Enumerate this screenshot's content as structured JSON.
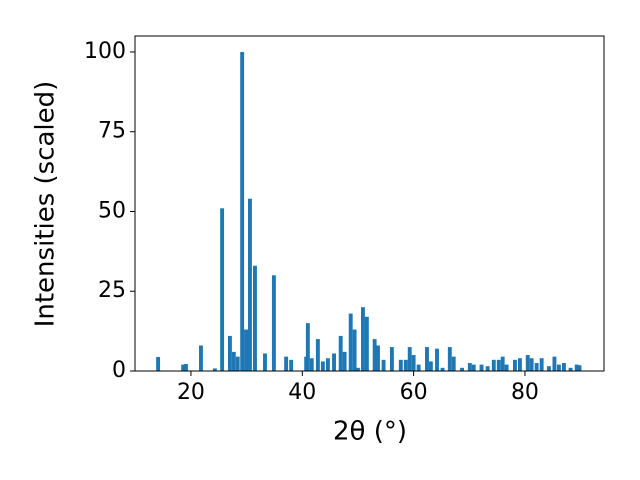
{
  "chart_data": {
    "type": "bar",
    "xlabel": "2θ (°)",
    "ylabel": "Intensities (scaled)",
    "color": "#1f77b4",
    "bar_width": 0.7,
    "xlim": [
      9.95,
      94.2
    ],
    "ylim": [
      0,
      105
    ],
    "xticks": [
      20,
      40,
      60,
      80
    ],
    "yticks": [
      0,
      25,
      50,
      75,
      100
    ],
    "grid": false,
    "x": [
      14.1,
      18.6,
      19.1,
      21.8,
      24.3,
      25.6,
      27.0,
      27.7,
      28.4,
      29.2,
      29.9,
      30.6,
      31.5,
      33.3,
      34.9,
      37.1,
      38.0,
      40.7,
      41.0,
      41.7,
      42.8,
      43.7,
      44.6,
      45.7,
      46.9,
      47.6,
      48.7,
      49.4,
      50.0,
      50.9,
      51.6,
      53.0,
      53.6,
      54.6,
      56.1,
      57.7,
      58.6,
      59.3,
      60.0,
      60.9,
      62.4,
      63.1,
      64.2,
      65.2,
      66.5,
      67.2,
      68.7,
      70.1,
      70.8,
      72.2,
      73.3,
      74.4,
      75.3,
      76.0,
      76.7,
      78.2,
      79.1,
      80.5,
      81.2,
      82.1,
      83.0,
      84.3,
      85.3,
      86.1,
      87.0,
      88.2,
      89.3,
      89.8
    ],
    "values": [
      4.4,
      2,
      2.2,
      8,
      0.8,
      51,
      11,
      6,
      4.5,
      100,
      13,
      54,
      33,
      5.5,
      30,
      4.5,
      3.5,
      4.5,
      15,
      4,
      10,
      3,
      4,
      5.5,
      11,
      6,
      18,
      13,
      1,
      20,
      17,
      10,
      8,
      3.5,
      7.5,
      3.5,
      3.5,
      7.5,
      5,
      2,
      7.5,
      3,
      7,
      1,
      7.5,
      4.5,
      1,
      2.5,
      2,
      2,
      1.5,
      3.5,
      3.5,
      4.5,
      2,
      3.5,
      4,
      5,
      4,
      2.5,
      4,
      1.5,
      4.5,
      2,
      2.5,
      1,
      2,
      1.8
    ]
  }
}
